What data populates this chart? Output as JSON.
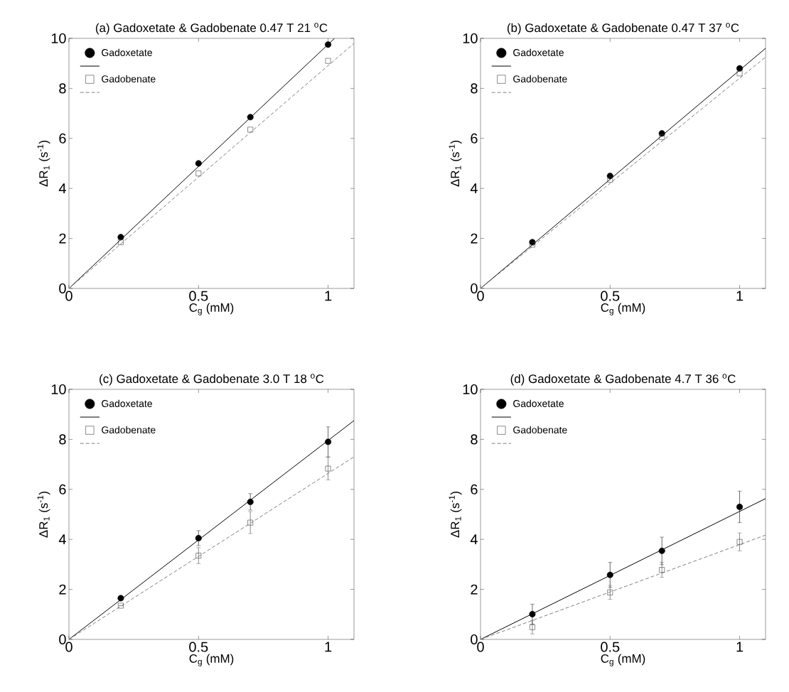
{
  "chart_data": [
    {
      "type": "scatter",
      "title": "(a) Gadoxetate & Gadobenate 0.47 T 21 $^{o}$C",
      "xlabel": "C$_{g}$ (mM)",
      "ylabel": "ΔR$_{1}$ (s$^{-1}$)",
      "xlim": [
        0,
        1.1
      ],
      "ylim": [
        0,
        10
      ],
      "xticks": [
        0,
        0.5,
        1
      ],
      "yticks": [
        0,
        2,
        4,
        6,
        8,
        10
      ],
      "legend": "top left",
      "series": [
        {
          "name": "Gadoxetate",
          "marker": "circle",
          "color": "#000000",
          "x": [
            0.2,
            0.5,
            0.7,
            1.0
          ],
          "values": [
            2.05,
            5.0,
            6.85,
            9.75
          ]
        },
        {
          "type": "line",
          "color": "#000000",
          "line_style": "solid",
          "x": [
            0,
            1.025
          ],
          "values": [
            0,
            10
          ]
        },
        {
          "name": "Gadobenate",
          "marker": "square",
          "color": "#404040",
          "x": [
            0.2,
            0.5,
            0.7,
            1.0
          ],
          "values": [
            1.85,
            4.6,
            6.35,
            9.1
          ]
        },
        {
          "type": "line",
          "color": "#808080",
          "line_style": "dashed",
          "x": [
            0,
            1.1
          ],
          "values": [
            0,
            9.8
          ]
        }
      ]
    },
    {
      "type": "scatter",
      "title": "(b) Gadoxetate & Gadobenate 0.47 T 37 $^{o}$C",
      "xlabel": "C$_{g}$ (mM)",
      "ylabel": "ΔR$_{1}$ (s$^{-1}$)",
      "xlim": [
        0,
        1.1
      ],
      "ylim": [
        0,
        10
      ],
      "xticks": [
        0,
        0.5,
        1
      ],
      "yticks": [
        0,
        2,
        4,
        6,
        8,
        10
      ],
      "legend": "top left",
      "series": [
        {
          "name": "Gadoxetate",
          "marker": "circle",
          "color": "#000000",
          "x": [
            0.2,
            0.5,
            0.7,
            1.0
          ],
          "values": [
            1.85,
            4.5,
            6.2,
            8.8
          ]
        },
        {
          "type": "line",
          "color": "#000000",
          "line_style": "solid",
          "x": [
            0,
            1.1
          ],
          "values": [
            0,
            9.6
          ]
        },
        {
          "name": "Gadobenate",
          "marker": "square",
          "color": "#404040",
          "x": [
            0.2,
            0.5,
            0.7,
            1.0
          ],
          "values": [
            1.75,
            4.35,
            6.05,
            8.6
          ]
        },
        {
          "type": "line",
          "color": "#808080",
          "line_style": "dashed",
          "x": [
            0,
            1.1
          ],
          "values": [
            0,
            9.25
          ]
        }
      ]
    },
    {
      "type": "scatter",
      "title": "(c) Gadoxetate & Gadobenate 3.0 T 18 $^{o}$C",
      "xlabel": "C$_{g}$ (mM)",
      "ylabel": "ΔR$_{1}$ (s$^{-1}$)",
      "xlim": [
        0,
        1.1
      ],
      "ylim": [
        0,
        10
      ],
      "xticks": [
        0,
        0.5,
        1
      ],
      "yticks": [
        0,
        2,
        4,
        6,
        8,
        10
      ],
      "legend": "top left",
      "series": [
        {
          "name": "Gadoxetate",
          "marker": "circle",
          "color": "#000000",
          "x": [
            0.2,
            0.5,
            0.7,
            1.0
          ],
          "values": [
            1.65,
            4.05,
            5.5,
            7.9
          ],
          "errors": [
            null,
            0.3,
            0.33,
            0.6
          ]
        },
        {
          "type": "line",
          "color": "#000000",
          "line_style": "solid",
          "x": [
            0,
            1.1
          ],
          "values": [
            0,
            8.75
          ]
        },
        {
          "name": "Gadobenate",
          "marker": "square",
          "color": "#404040",
          "x": [
            0.2,
            0.5,
            0.7,
            1.0
          ],
          "values": [
            1.35,
            3.35,
            4.67,
            6.83
          ],
          "errors": [
            null,
            0.32,
            0.44,
            0.45
          ]
        },
        {
          "type": "line",
          "color": "#808080",
          "line_style": "dashed",
          "x": [
            0,
            1.1
          ],
          "values": [
            0,
            7.3
          ]
        }
      ]
    },
    {
      "type": "scatter",
      "title": "(d) Gadoxetate & Gadobenate 4.7 T 36 $^{o}$C",
      "xlabel": "C$_{g}$ (mM)",
      "ylabel": "ΔR$_{1}$ (s$^{-1}$)",
      "xlim": [
        0,
        1.1
      ],
      "ylim": [
        0,
        10
      ],
      "xticks": [
        0,
        0.5,
        1
      ],
      "yticks": [
        0,
        2,
        4,
        6,
        8,
        10
      ],
      "legend": "top left",
      "series": [
        {
          "name": "Gadoxetate",
          "marker": "circle",
          "color": "#000000",
          "x": [
            0.2,
            0.5,
            0.7,
            1.0
          ],
          "values": [
            1.01,
            2.58,
            3.54,
            5.3
          ],
          "errors": [
            0.4,
            0.5,
            0.55,
            0.63
          ]
        },
        {
          "type": "line",
          "color": "#000000",
          "line_style": "solid",
          "x": [
            0,
            1.1
          ],
          "values": [
            0,
            5.63
          ]
        },
        {
          "name": "Gadobenate",
          "marker": "square",
          "color": "#404040",
          "x": [
            0.2,
            0.5,
            0.7,
            1.0
          ],
          "values": [
            0.49,
            1.88,
            2.78,
            3.9
          ],
          "errors": [
            0.27,
            0.28,
            0.3,
            0.36
          ]
        },
        {
          "type": "line",
          "color": "#808080",
          "line_style": "dashed",
          "x": [
            0,
            1.1
          ],
          "values": [
            0,
            4.17
          ]
        }
      ]
    }
  ]
}
